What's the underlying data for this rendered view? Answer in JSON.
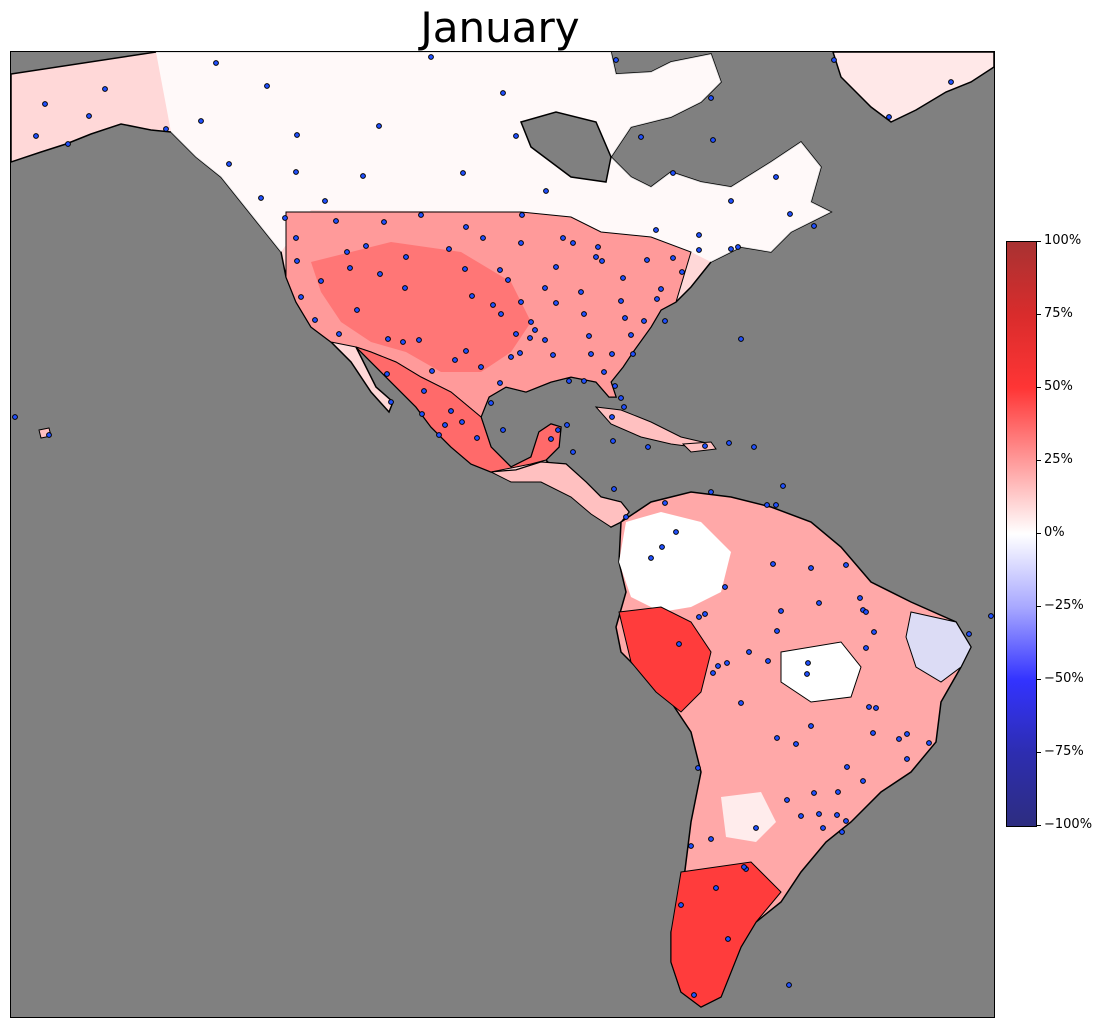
{
  "title": "January",
  "colors": {
    "ocean": "#808080",
    "no_change": "#ffffff",
    "light_increase": "#ffe4e4",
    "moderate_increase": "#ffb8b8",
    "strong_increase": "#ff7070",
    "very_strong_increase": "#ff3c3c",
    "extreme_increase": "#d93030",
    "decrease": "#dcdcf5",
    "station_fill": "#2050ff",
    "station_stroke": "#000000",
    "boundary": "#000000"
  },
  "colorbar": {
    "ticks": [
      {
        "label": "100%",
        "value": 100
      },
      {
        "label": "75%",
        "value": 75
      },
      {
        "label": "50%",
        "value": 50
      },
      {
        "label": "25%",
        "value": 25
      },
      {
        "label": "0%",
        "value": 0
      },
      {
        "label": "−25%",
        "value": -25
      },
      {
        "label": "−50%",
        "value": -50
      },
      {
        "label": "−75%",
        "value": -75
      },
      {
        "label": "−100%",
        "value": -100
      }
    ]
  }
}
